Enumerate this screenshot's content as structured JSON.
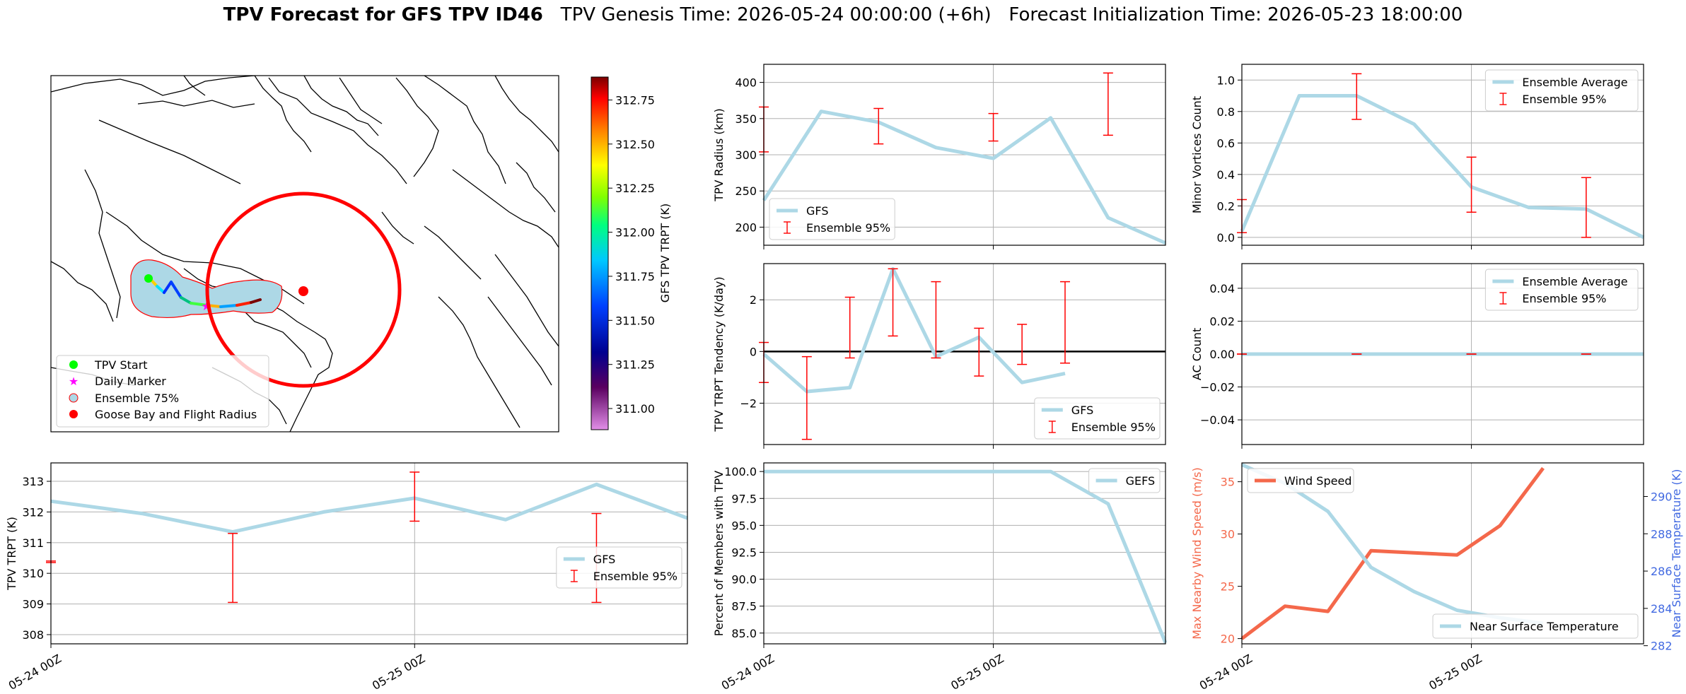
{
  "header": {
    "title_bold": "TPV Forecast for GFS TPV ID46",
    "title_rest": "   TPV Genesis Time: 2026-05-24 00:00:00 (+6h)   Forecast Initialization Time: 2026-05-23 18:00:00"
  },
  "colors": {
    "light_blue": "#add8e6",
    "error_red": "#ff0000",
    "wind_red": "#f4684b",
    "temp_blue": "#4169e1"
  },
  "map": {
    "colorbar_label": "GFS TPV TRPT (K)",
    "colorbar_ticks": [
      "311.00",
      "311.25",
      "311.50",
      "311.75",
      "312.00",
      "312.25",
      "312.50",
      "312.75"
    ],
    "colorbar_range": [
      310.88,
      312.88
    ],
    "legend": [
      "TPV Start",
      "Daily Marker",
      "Ensemble 75%",
      "Goose Bay and Flight Radius"
    ]
  },
  "chart_data": [
    {
      "id": "radius",
      "type": "line",
      "ylabel": "TPV Radius (km)",
      "ylim": [
        175,
        425
      ],
      "yticks": [
        "200",
        "250",
        "300",
        "350",
        "400"
      ],
      "grid": "horizontal",
      "legend": "lower-left",
      "series": [
        {
          "name": "GFS",
          "x": [
            0,
            1,
            2,
            3,
            4,
            5,
            6,
            7
          ],
          "values": [
            237,
            360,
            345,
            310,
            295,
            351,
            213,
            178
          ]
        }
      ],
      "error_bars": {
        "name": "Ensemble 95%",
        "x": [
          0,
          2,
          4,
          6
        ],
        "low": [
          304,
          315,
          319,
          327
        ],
        "high": [
          366,
          364,
          357,
          413
        ]
      }
    },
    {
      "id": "minor",
      "type": "line",
      "ylabel": "Minor Vortices Count",
      "ylim": [
        -0.05,
        1.1
      ],
      "yticks": [
        "0.0",
        "0.2",
        "0.4",
        "0.6",
        "0.8",
        "1.0"
      ],
      "grid": "horizontal",
      "legend": "upper-right",
      "series": [
        {
          "name": "Ensemble Average",
          "x": [
            0,
            1,
            2,
            3,
            4,
            5,
            6,
            7
          ],
          "values": [
            0.04,
            0.9,
            0.9,
            0.72,
            0.32,
            0.19,
            0.18,
            0.0
          ]
        }
      ],
      "error_bars": {
        "name": "Ensemble 95%",
        "x": [
          0,
          2,
          4,
          6
        ],
        "low": [
          0.03,
          0.75,
          0.16,
          0.0
        ],
        "high": [
          0.24,
          1.04,
          0.51,
          0.38
        ]
      }
    },
    {
      "id": "tendency",
      "type": "line",
      "ylabel": "TPV TRPT Tendency (K/day)",
      "ylim": [
        -3.6,
        3.4
      ],
      "yticks": [
        "−2",
        "0",
        "2"
      ],
      "grid": "horizontal",
      "legend": "lower-right",
      "series": [
        {
          "name": "GFS",
          "x": [
            0,
            0.75,
            1.5,
            2.25,
            3,
            3.75,
            4.5,
            5.25
          ],
          "values": [
            -0.1,
            -1.55,
            -1.4,
            3.2,
            -0.2,
            0.55,
            -1.2,
            -0.85
          ]
        }
      ],
      "error_bars": {
        "name": "Ensemble 95%",
        "x": [
          0,
          0.75,
          1.5,
          2.25,
          3,
          3.75,
          4.5,
          5.25
        ],
        "low": [
          -1.2,
          -3.4,
          -0.25,
          0.6,
          -0.25,
          -0.95,
          -0.5,
          -0.45
        ],
        "high": [
          0.35,
          -0.2,
          2.1,
          3.2,
          2.7,
          0.9,
          1.05,
          2.7
        ]
      }
    },
    {
      "id": "ac",
      "type": "line",
      "ylabel": "AC Count",
      "ylim": [
        -0.055,
        0.055
      ],
      "yticks": [
        "−0.04",
        "−0.02",
        "0.00",
        "0.02",
        "0.04"
      ],
      "grid": "horizontal",
      "legend": "upper-right",
      "series": [
        {
          "name": "Ensemble Average",
          "x": [
            0,
            1,
            2,
            3,
            4,
            5,
            6,
            7
          ],
          "values": [
            0,
            0,
            0,
            0,
            0,
            0,
            0,
            0
          ]
        }
      ],
      "error_bars": {
        "name": "Ensemble 95%",
        "x": [
          0,
          2,
          4,
          6
        ],
        "low": [
          0,
          0,
          0,
          0
        ],
        "high": [
          0,
          0,
          0,
          0
        ]
      }
    },
    {
      "id": "trpt",
      "type": "line",
      "ylabel": "TPV TRPT (K)",
      "ylim": [
        307.7,
        313.6
      ],
      "yticks": [
        "308",
        "309",
        "310",
        "311",
        "312",
        "313"
      ],
      "xticks": [
        "05-24 00Z",
        "05-25 00Z"
      ],
      "grid": "both",
      "legend": "center-right",
      "series": [
        {
          "name": "GFS",
          "x": [
            0,
            1,
            2,
            3,
            4,
            5,
            6,
            7
          ],
          "values": [
            312.35,
            311.95,
            311.35,
            312.0,
            312.45,
            311.75,
            312.9,
            311.8
          ]
        }
      ],
      "error_bars": {
        "name": "Ensemble 95%",
        "x": [
          0,
          2,
          4,
          6
        ],
        "low": [
          310.35,
          309.05,
          311.7,
          309.05
        ],
        "high": [
          310.4,
          311.3,
          313.3,
          311.95
        ]
      }
    },
    {
      "id": "members",
      "type": "line",
      "ylabel": "Percent of Members with TPV",
      "ylim": [
        84,
        100.8
      ],
      "yticks": [
        "85.0",
        "87.5",
        "90.0",
        "92.5",
        "95.0",
        "97.5",
        "100.0"
      ],
      "xticks": [
        "05-24 00Z",
        "05-25 00Z"
      ],
      "grid": "both",
      "legend": "upper-right",
      "series": [
        {
          "name": "GEFS",
          "x": [
            0,
            1,
            2,
            3,
            4,
            5,
            6,
            7
          ],
          "values": [
            100,
            100,
            100,
            100,
            100,
            100,
            97,
            84.1
          ]
        }
      ]
    },
    {
      "id": "wind",
      "type": "line",
      "ylabel": "Max Nearby Wind Speed (m/s)",
      "ylim": [
        19.5,
        36.8
      ],
      "yticks": [
        "20",
        "25",
        "30",
        "35"
      ],
      "y2label": "Near Surface Temperature (K)",
      "y2lim": [
        282.1,
        291.8
      ],
      "y2ticks": [
        "282",
        "284",
        "286",
        "288",
        "290"
      ],
      "xticks": [
        "05-24 00Z",
        "05-25 00Z"
      ],
      "grid": "vertical",
      "legend": "upper-left / lower-right",
      "series": [
        {
          "name": "Wind Speed",
          "axis": "left",
          "x": [
            0,
            0.75,
            1.5,
            2.25,
            3,
            3.75,
            4.5,
            5.25
          ],
          "values": [
            20.0,
            23.1,
            22.6,
            28.4,
            28.2,
            28.0,
            30.8,
            36.3
          ]
        },
        {
          "name": "Near Surface Temperature",
          "axis": "right",
          "x": [
            0,
            0.75,
            1.5,
            2.25,
            3,
            3.75,
            4.5,
            5.25
          ],
          "values": [
            291.7,
            290.7,
            289.2,
            286.2,
            284.9,
            283.9,
            283.5,
            283.2
          ]
        }
      ]
    }
  ]
}
